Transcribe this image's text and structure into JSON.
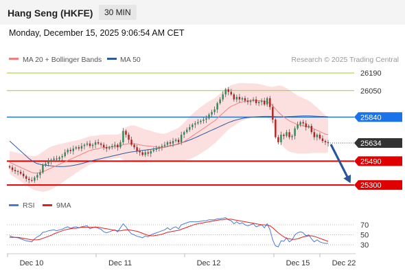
{
  "header": {
    "title": "Hang Seng (HKFE)",
    "timeframe": "30 MIN"
  },
  "datetime": "Monday, December 15, 2025 9:06:54 AM CET",
  "legend": {
    "ma_bb": {
      "label": "MA 20 + Bollinger Bands",
      "color": "#f08080"
    },
    "ma50": {
      "label": "MA 50",
      "color": "#2c5aa0"
    },
    "credit": "Research © 2025 Trading Central"
  },
  "rsi_legend": {
    "rsi": {
      "label": "RSI",
      "color": "#4a78d4"
    },
    "ma9": {
      "label": "9MA",
      "color": "#e02020"
    }
  },
  "colors": {
    "up": "#2e8b57",
    "down": "#b22222",
    "resistance": "#9acd32",
    "pivot": "#1a73e8",
    "support": "#e00000",
    "arrow": "#2a5699",
    "last": "#333333"
  },
  "chart_data": {
    "type": "candlestick",
    "y_range": [
      25230,
      26240
    ],
    "x_tick_labels": [
      "Dec 10",
      "Dec 11",
      "Dec 12",
      "Dec 15",
      "Dec 22"
    ],
    "levels": [
      {
        "value": 26190,
        "label": "26190",
        "kind": "resistance"
      },
      {
        "value": 26050,
        "label": "26050",
        "kind": "resistance"
      },
      {
        "value": 25840,
        "label": "25840",
        "kind": "pivot"
      },
      {
        "value": 25634,
        "label": "25634",
        "kind": "last"
      },
      {
        "value": 25490,
        "label": "25490",
        "kind": "support"
      },
      {
        "value": 25300,
        "label": "25300",
        "kind": "support"
      }
    ],
    "closes": [
      25440,
      25420,
      25410,
      25405,
      25390,
      25370,
      25350,
      25340,
      25335,
      25360,
      25380,
      25400,
      25460,
      25470,
      25490,
      25500,
      25510,
      25505,
      25520,
      25530,
      25560,
      25580,
      25570,
      25590,
      25600,
      25590,
      25610,
      25620,
      25630,
      25610,
      25620,
      25640,
      25630,
      25620,
      25600,
      25590,
      25600,
      25610,
      25620,
      25600,
      25640,
      25730,
      25700,
      25660,
      25620,
      25600,
      25570,
      25560,
      25540,
      25560,
      25550,
      25570,
      25580,
      25590,
      25600,
      25610,
      25620,
      25640,
      25630,
      25650,
      25660,
      25640,
      25700,
      25720,
      25740,
      25760,
      25780,
      25790,
      25800,
      25810,
      25820,
      25830,
      25860,
      25880,
      25900,
      25950,
      25980,
      26020,
      26060,
      26040,
      26020,
      25980,
      26000,
      25980,
      25990,
      25970,
      25960,
      25970,
      25980,
      25950,
      25960,
      25970,
      25940,
      25990,
      25920,
      25820,
      25680,
      25640,
      25700,
      25690,
      25720,
      25680,
      25690,
      25750,
      25780,
      25800,
      25790,
      25760,
      25770,
      25720,
      25680,
      25700,
      25670,
      25650,
      25640,
      25634
    ],
    "ma20": [
      25480,
      25470,
      25460,
      25450,
      25440,
      25430,
      25420,
      25410,
      25400,
      25395,
      25395,
      25400,
      25405,
      25415,
      25425,
      25435,
      25445,
      25455,
      25465,
      25475,
      25485,
      25495,
      25505,
      25515,
      25525,
      25535,
      25545,
      25555,
      25565,
      25575,
      25580,
      25585,
      25590,
      25595,
      25598,
      25600,
      25602,
      25604,
      25606,
      25608,
      25612,
      25620,
      25625,
      25628,
      25630,
      25628,
      25624,
      25620,
      25615,
      25612,
      25610,
      25608,
      25605,
      25602,
      25600,
      25598,
      25600,
      25605,
      25610,
      25615,
      25620,
      25625,
      25635,
      25645,
      25660,
      25675,
      25690,
      25705,
      25720,
      25735,
      25750,
      25765,
      25780,
      25795,
      25810,
      25830,
      25850,
      25870,
      25890,
      25910,
      25925,
      25935,
      25945,
      25955,
      25960,
      25965,
      25968,
      25970,
      25972,
      25972,
      25970,
      25968,
      25965,
      25960,
      25950,
      25930,
      25905,
      25880,
      25860,
      25840,
      25825,
      25810,
      25800,
      25790,
      25780,
      25775,
      25770,
      25765,
      25760,
      25755,
      25745,
      25735,
      25725,
      25715,
      25705,
      25700
    ],
    "ma50": [
      25650,
      25630,
      25610,
      25590,
      25570,
      25550,
      25530,
      25510,
      25495,
      25480,
      25470,
      25465,
      25460,
      25458,
      25455,
      25452,
      25450,
      25448,
      25447,
      25447,
      25448,
      25450,
      25453,
      25456,
      25460,
      25465,
      25470,
      25476,
      25482,
      25488,
      25494,
      25500,
      25505,
      25510,
      25515,
      25520,
      25525,
      25530,
      25535,
      25540,
      25545,
      25550,
      25555,
      25560,
      25563,
      25566,
      25569,
      25572,
      25575,
      25578,
      25581,
      25584,
      25587,
      25590,
      25594,
      25598,
      25602,
      25607,
      25612,
      25617,
      25622,
      25628,
      25635,
      25642,
      25650,
      25658,
      25667,
      25676,
      25686,
      25696,
      25706,
      25716,
      25726,
      25736,
      25746,
      25756,
      25766,
      25776,
      25786,
      25796,
      25804,
      25812,
      25818,
      25824,
      25829,
      25833,
      25836,
      25838,
      25840,
      25842,
      25843,
      25844,
      25845,
      25845,
      25845,
      25844,
      25843,
      25842,
      25842,
      25842,
      25843,
      25844,
      25845,
      25846,
      25847,
      25848,
      25849,
      25849,
      25849,
      25848,
      25847,
      25846,
      25845,
      25844,
      25843,
      25842
    ],
    "bb_width": [
      90,
      95,
      100,
      105,
      110,
      115,
      120,
      125,
      130,
      135,
      140,
      150,
      160,
      165,
      170,
      170,
      168,
      165,
      160,
      155,
      150,
      145,
      140,
      135,
      130,
      125,
      120,
      118,
      115,
      112,
      110,
      108,
      106,
      104,
      102,
      100,
      98,
      96,
      95,
      94,
      96,
      120,
      135,
      140,
      145,
      145,
      142,
      138,
      134,
      130,
      126,
      122,
      118,
      115,
      112,
      110,
      108,
      110,
      115,
      120,
      125,
      130,
      140,
      150,
      160,
      170,
      175,
      180,
      182,
      184,
      185,
      186,
      185,
      183,
      180,
      178,
      176,
      174,
      172,
      170,
      168,
      165,
      160,
      155,
      150,
      145,
      140,
      138,
      136,
      134,
      132,
      130,
      128,
      126,
      130,
      150,
      180,
      210,
      230,
      240,
      245,
      245,
      240,
      235,
      230,
      225,
      220,
      215,
      210,
      200,
      190,
      180,
      170,
      160,
      150,
      140
    ],
    "rsi": [
      48,
      46,
      45,
      44,
      42,
      40,
      38,
      37,
      36,
      42,
      46,
      49,
      55,
      56,
      58,
      59,
      60,
      58,
      60,
      61,
      64,
      66,
      63,
      65,
      66,
      64,
      66,
      67,
      68,
      62,
      64,
      66,
      63,
      61,
      56,
      54,
      56,
      58,
      60,
      56,
      64,
      72,
      66,
      58,
      52,
      50,
      47,
      46,
      44,
      48,
      46,
      50,
      52,
      54,
      56,
      58,
      60,
      64,
      60,
      64,
      66,
      62,
      70,
      72,
      74,
      76,
      76,
      76,
      76,
      77,
      78,
      78,
      80,
      80,
      80,
      82,
      82,
      83,
      84,
      80,
      78,
      72,
      76,
      72,
      74,
      70,
      68,
      70,
      72,
      66,
      68,
      70,
      64,
      72,
      60,
      40,
      28,
      26,
      38,
      37,
      44,
      36,
      40,
      50,
      54,
      56,
      54,
      48,
      50,
      42,
      36,
      40,
      36,
      34,
      33,
      33
    ],
    "rsi_ma9": [
      45,
      45,
      45,
      45,
      44,
      43,
      42,
      41,
      40,
      40,
      40,
      41,
      43,
      45,
      47,
      49,
      52,
      54,
      56,
      58,
      60,
      61,
      62,
      63,
      63,
      64,
      65,
      65,
      65,
      65,
      65,
      65,
      65,
      64,
      63,
      62,
      61,
      60,
      59,
      58,
      58,
      59,
      60,
      60,
      59,
      58,
      57,
      55,
      53,
      51,
      49,
      48,
      48,
      49,
      50,
      51,
      53,
      55,
      56,
      57,
      58,
      59,
      61,
      63,
      65,
      67,
      69,
      71,
      72,
      73,
      74,
      75,
      76,
      77,
      78,
      79,
      80,
      80,
      81,
      81,
      81,
      80,
      79,
      78,
      77,
      76,
      75,
      74,
      73,
      72,
      71,
      70,
      70,
      69,
      68,
      64,
      59,
      54,
      50,
      46,
      43,
      42,
      41,
      41,
      42,
      44,
      46,
      47,
      48,
      48,
      47,
      45,
      43,
      41,
      39,
      37
    ],
    "rsi_ticks": [
      70,
      50,
      30
    ]
  }
}
